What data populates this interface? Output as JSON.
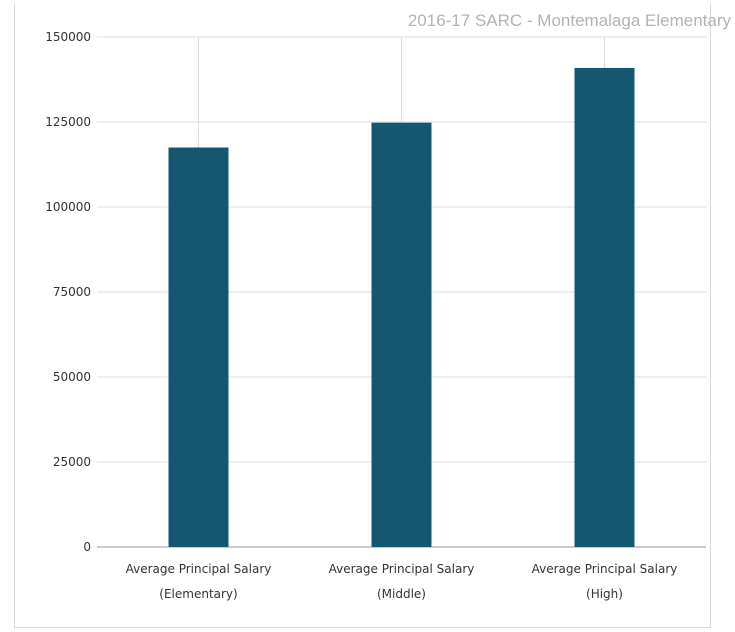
{
  "chart_data": {
    "type": "bar",
    "title": "2016-17 SARC - Montemalaga Elementary",
    "categories": [
      [
        "Average Principal Salary",
        "(Elementary)"
      ],
      [
        "Average Principal Salary",
        "(Middle)"
      ],
      [
        "Average Principal Salary",
        "(High)"
      ]
    ],
    "values": [
      117500,
      124800,
      140900
    ],
    "ylim": [
      0,
      150000
    ],
    "yticks": [
      0,
      25000,
      50000,
      75000,
      100000,
      125000,
      150000
    ],
    "grid": true,
    "legend": "none",
    "colors": {
      "bar": "#135870",
      "grid": "#dcdcdc",
      "title": "#b3b3b3"
    }
  }
}
